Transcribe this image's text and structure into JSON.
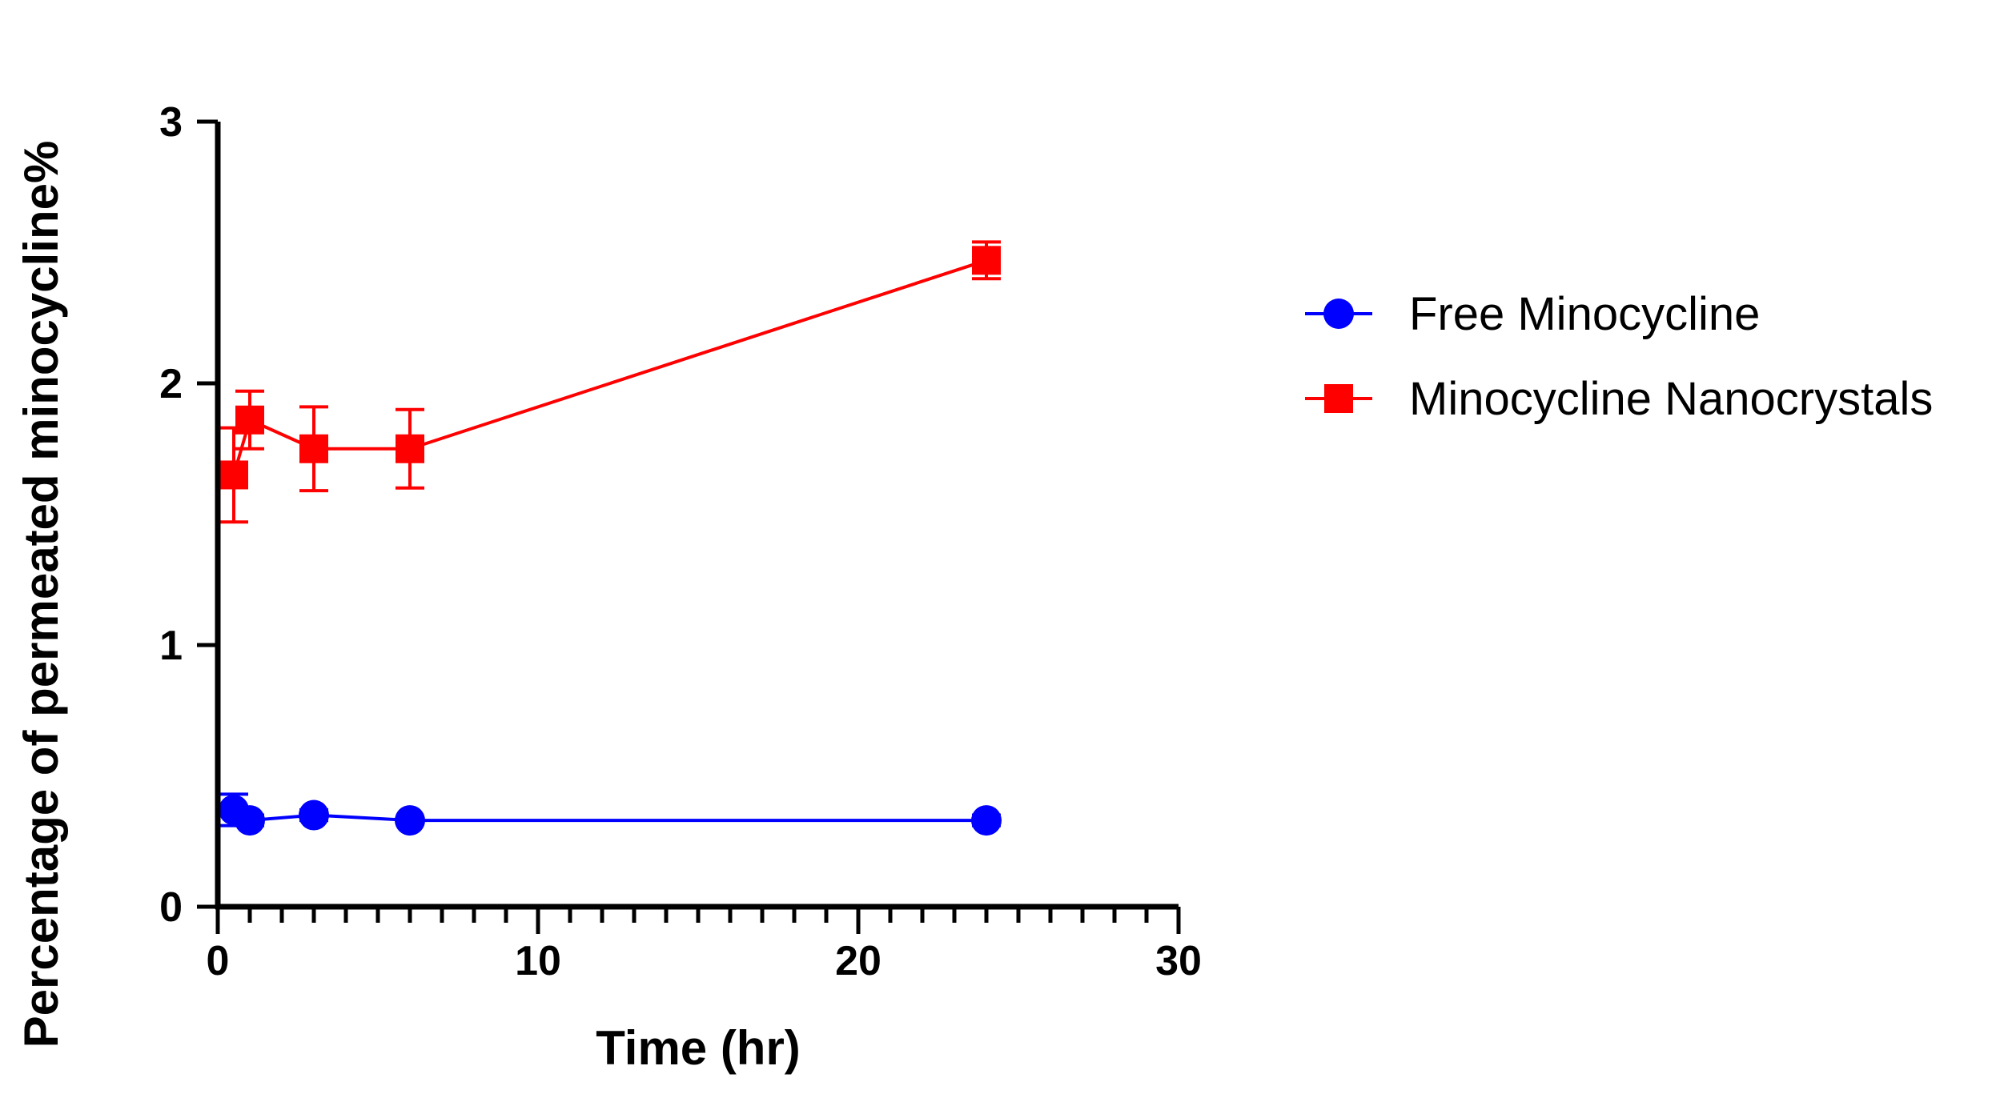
{
  "chart_data": {
    "type": "line",
    "title": "",
    "xlabel": "Time (hr)",
    "ylabel": "Percentage of permeated minocycline%",
    "xlim": [
      0,
      30
    ],
    "ylim": [
      0,
      3
    ],
    "x_ticks": [
      "0",
      "10",
      "20",
      "30"
    ],
    "y_ticks": [
      "0",
      "1",
      "2",
      "3"
    ],
    "x_minor_step": 1,
    "grid": false,
    "legend_position": "right",
    "series": [
      {
        "name": "Free Minocycline",
        "color": "#0000ff",
        "marker": "circle",
        "x": [
          0.5,
          1,
          3,
          6,
          24
        ],
        "y": [
          0.37,
          0.33,
          0.35,
          0.33,
          0.33
        ],
        "err": [
          0.06,
          0.02,
          0.02,
          0.01,
          0.02
        ]
      },
      {
        "name": "Minocycline Nanocrystals",
        "color": "#ff0000",
        "marker": "square",
        "x": [
          0.5,
          1,
          3,
          6,
          24
        ],
        "y": [
          1.65,
          1.86,
          1.75,
          1.75,
          2.47
        ],
        "err": [
          0.18,
          0.11,
          0.16,
          0.15,
          0.07
        ]
      }
    ]
  }
}
